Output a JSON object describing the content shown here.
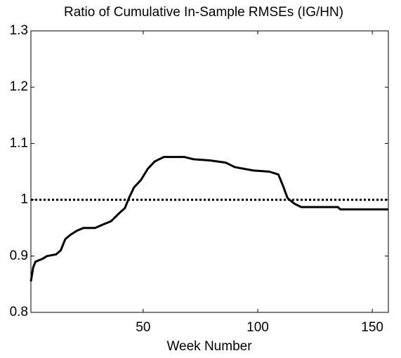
{
  "chart_data": {
    "type": "line",
    "title": "Ratio of Cumulative In-Sample RMSEs (IG/HN)",
    "x_label": "Week Number",
    "x": [
      1,
      2,
      3,
      6,
      8,
      12,
      14,
      16,
      18,
      21,
      24,
      29,
      33,
      36,
      40,
      42,
      44,
      46,
      49,
      52,
      55,
      59,
      68,
      72,
      79,
      86,
      90,
      98,
      105,
      109,
      111,
      113,
      116,
      119,
      135,
      136,
      157
    ],
    "series": [
      {
        "color": "#000000",
        "values": [
          0.855,
          0.88,
          0.89,
          0.895,
          0.9,
          0.903,
          0.91,
          0.93,
          0.937,
          0.945,
          0.95,
          0.95,
          0.957,
          0.962,
          0.978,
          0.985,
          1.005,
          1.022,
          1.035,
          1.055,
          1.068,
          1.076,
          1.076,
          1.072,
          1.07,
          1.066,
          1.058,
          1.052,
          1.05,
          1.045,
          1.025,
          1.003,
          0.993,
          0.987,
          0.987,
          0.983,
          0.983
        ]
      }
    ],
    "reference_line": 1,
    "xlim": [
      1,
      157
    ],
    "xticks": [
      50,
      100,
      150
    ],
    "ylim": [
      0.8,
      1.3
    ],
    "yticks": [
      0.8,
      0.9,
      1,
      1.1,
      1.2,
      1.3
    ]
  }
}
